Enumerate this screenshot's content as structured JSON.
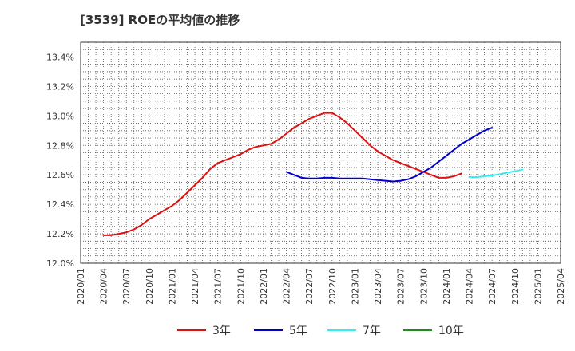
{
  "chart_data": {
    "type": "line",
    "title": "[3539]  ROEの平均値の推移",
    "xlabel": "",
    "ylabel": "",
    "ylim": [
      12.0,
      13.5
    ],
    "y_ticks": [
      "12.0%",
      "12.2%",
      "12.4%",
      "12.6%",
      "12.8%",
      "13.0%",
      "13.2%",
      "13.4%"
    ],
    "y_tick_values": [
      12.0,
      12.2,
      12.4,
      12.6,
      12.8,
      13.0,
      13.2,
      13.4
    ],
    "x_ticks": [
      "2020/01",
      "2020/04",
      "2020/07",
      "2020/10",
      "2021/01",
      "2021/04",
      "2021/07",
      "2021/10",
      "2022/01",
      "2022/04",
      "2022/07",
      "2022/10",
      "2023/01",
      "2023/04",
      "2023/07",
      "2023/10",
      "2024/01",
      "2024/04",
      "2024/07",
      "2024/10",
      "2025/01",
      "2025/04"
    ],
    "grid": true,
    "legend_position": "bottom",
    "series": [
      {
        "name": "3年",
        "color": "#dd1111",
        "start": "2020/04",
        "values": [
          12.19,
          12.19,
          12.2,
          12.21,
          12.23,
          12.26,
          12.3,
          12.33,
          12.36,
          12.39,
          12.43,
          12.48,
          12.53,
          12.58,
          12.64,
          12.68,
          12.7,
          12.72,
          12.74,
          12.77,
          12.79,
          12.8,
          12.81,
          12.84,
          12.88,
          12.92,
          12.95,
          12.98,
          13.0,
          13.02,
          13.02,
          12.99,
          12.95,
          12.9,
          12.85,
          12.8,
          12.76,
          12.73,
          12.7,
          12.68,
          12.66,
          12.64,
          12.62,
          12.6,
          12.58,
          12.58,
          12.59,
          12.61
        ]
      },
      {
        "name": "5年",
        "color": "#0000cc",
        "start": "2022/04",
        "values": [
          12.62,
          12.6,
          12.58,
          12.575,
          12.575,
          12.58,
          12.58,
          12.575,
          12.575,
          12.575,
          12.575,
          12.57,
          12.565,
          12.56,
          12.555,
          12.56,
          12.57,
          12.59,
          12.62,
          12.65,
          12.69,
          12.73,
          12.77,
          12.81,
          12.84,
          12.87,
          12.9,
          12.92
        ]
      },
      {
        "name": "7年",
        "color": "#33eeee",
        "start": "2024/04",
        "values": [
          12.585,
          12.585,
          12.59,
          12.595,
          12.605,
          12.615,
          12.625,
          12.635
        ]
      },
      {
        "name": "10年",
        "color": "#228822",
        "start": "",
        "values": []
      }
    ]
  }
}
